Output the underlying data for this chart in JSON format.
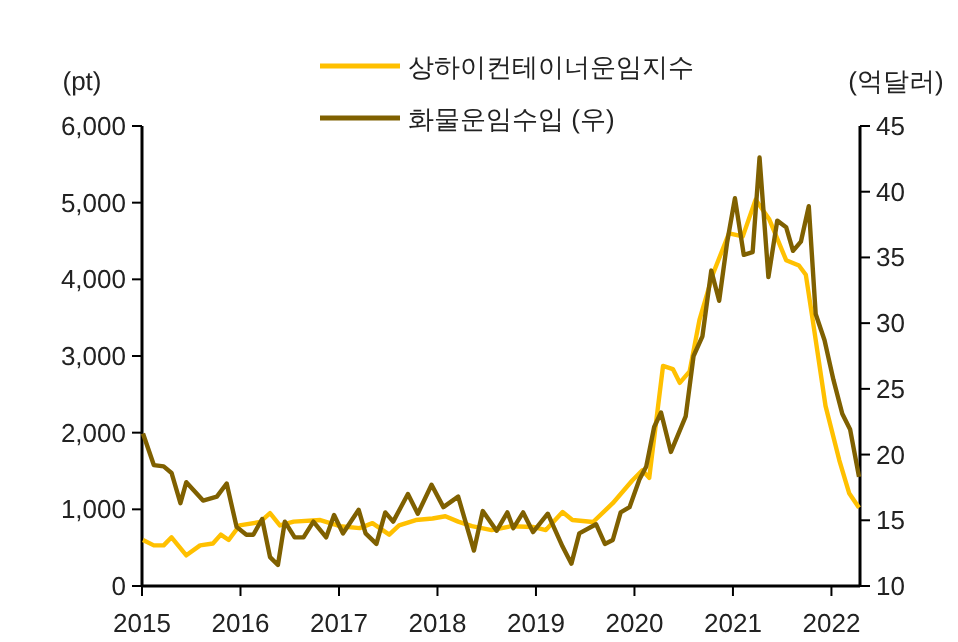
{
  "chart_data": {
    "type": "line",
    "ylabel": "(pt)",
    "y2label": "(억달러)",
    "legend": "top",
    "xlim": [
      2015,
      2022.29
    ],
    "xticks": [
      2015,
      2016,
      2017,
      2018,
      2019,
      2020,
      2021,
      2022
    ],
    "ylim": [
      0,
      6000
    ],
    "yticks": [
      0,
      {
        "value": 1000,
        "label": "1,000"
      },
      {
        "value": 2000,
        "label": "2,000"
      },
      {
        "value": 3000,
        "label": "3,000"
      },
      {
        "value": 4000,
        "label": "4,000"
      },
      {
        "value": 5000,
        "label": "5,000"
      },
      {
        "value": 6000,
        "label": "6,000"
      }
    ],
    "y2lim": [
      10,
      45
    ],
    "y2ticks": [
      10,
      15,
      20,
      25,
      30,
      35,
      40,
      45
    ],
    "grid": false,
    "line_style": "solid",
    "series": [
      {
        "name": "상하이컨테이너운임지수",
        "color": "#ffc000",
        "x": [
          2015.01,
          2015.12,
          2015.22,
          2015.3,
          2015.45,
          2015.59,
          2015.72,
          2015.8,
          2015.88,
          2015.99,
          2016.2,
          2016.3,
          2016.4,
          2016.54,
          2016.81,
          2017.01,
          2017.21,
          2017.34,
          2017.51,
          2017.61,
          2017.78,
          2017.95,
          2018.08,
          2018.21,
          2018.35,
          2018.55,
          2018.75,
          2018.97,
          2019.1,
          2019.27,
          2019.37,
          2019.58,
          2019.78,
          2019.98,
          2020.08,
          2020.15,
          2020.29,
          2020.39,
          2020.46,
          2020.56,
          2020.66,
          2020.8,
          2020.96,
          2021.1,
          2021.23,
          2021.37,
          2021.54,
          2021.67,
          2021.74,
          2021.81,
          2021.94,
          2022.08,
          2022.18,
          2022.28
        ],
        "values": [
          600,
          530,
          530,
          635,
          400,
          530,
          555,
          670,
          600,
          790,
          835,
          950,
          790,
          840,
          860,
          780,
          755,
          820,
          670,
          790,
          860,
          880,
          910,
          840,
          780,
          730,
          780,
          770,
          730,
          965,
          860,
          835,
          1080,
          1380,
          1510,
          1410,
          2870,
          2830,
          2650,
          2800,
          3470,
          4080,
          4600,
          4560,
          5040,
          4780,
          4250,
          4180,
          4060,
          3470,
          2350,
          1640,
          1210,
          1020
        ]
      },
      {
        "name": "화물운임수입 (우)",
        "color": "#7f6000",
        "axis": "y2",
        "x": [
          2015.01,
          2015.12,
          2015.22,
          2015.3,
          2015.39,
          2015.45,
          2015.62,
          2015.76,
          2015.86,
          2015.96,
          2016.06,
          2016.13,
          2016.22,
          2016.3,
          2016.38,
          2016.45,
          2016.55,
          2016.64,
          2016.74,
          2016.87,
          2016.95,
          2017.04,
          2017.2,
          2017.27,
          2017.38,
          2017.47,
          2017.55,
          2017.7,
          2017.8,
          2017.94,
          2018.06,
          2018.21,
          2018.37,
          2018.46,
          2018.6,
          2018.71,
          2018.77,
          2018.87,
          2018.97,
          2019.12,
          2019.27,
          2019.36,
          2019.44,
          2019.61,
          2019.7,
          2019.78,
          2019.86,
          2019.95,
          2020.05,
          2020.12,
          2020.2,
          2020.27,
          2020.37,
          2020.52,
          2020.6,
          2020.69,
          2020.78,
          2020.86,
          2020.94,
          2021.02,
          2021.11,
          2021.2,
          2021.27,
          2021.36,
          2021.45,
          2021.54,
          2021.61,
          2021.69,
          2021.77,
          2021.84,
          2021.93,
          2022.02,
          2022.11,
          2022.19,
          2022.28
        ],
        "values": [
          21.6,
          19.2,
          19.1,
          18.6,
          16.3,
          17.9,
          16.5,
          16.8,
          17.8,
          14.5,
          13.9,
          13.9,
          15.1,
          12.2,
          11.6,
          14.9,
          13.7,
          13.7,
          14.9,
          13.7,
          15.4,
          14.0,
          15.8,
          14.0,
          13.2,
          15.6,
          14.9,
          17.0,
          15.5,
          17.7,
          16.0,
          16.8,
          12.7,
          15.7,
          14.2,
          15.6,
          14.4,
          15.6,
          14.1,
          15.5,
          13.0,
          11.7,
          14.0,
          14.7,
          13.2,
          13.5,
          15.6,
          16.0,
          18.1,
          19.1,
          22.1,
          23.2,
          20.2,
          22.9,
          27.5,
          29.0,
          34.0,
          31.7,
          36.1,
          39.5,
          35.2,
          35.4,
          42.6,
          33.5,
          37.8,
          37.3,
          35.5,
          36.2,
          38.9,
          30.7,
          28.7,
          25.7,
          23.1,
          21.9,
          18.3
        ]
      }
    ]
  }
}
